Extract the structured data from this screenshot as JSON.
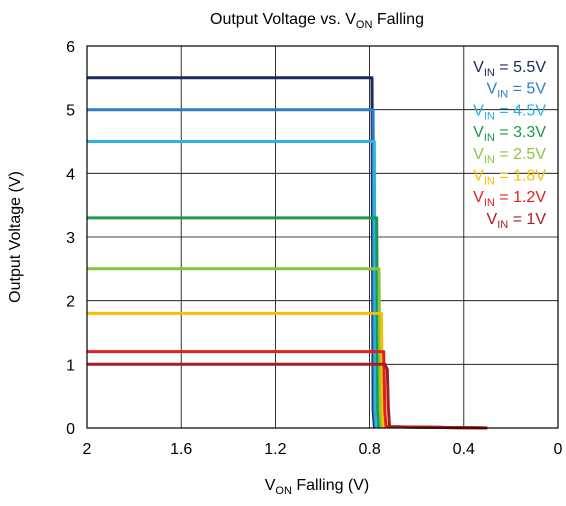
{
  "chart_data": {
    "type": "line",
    "title": {
      "main": "Output Voltage vs. V",
      "sub": "ON",
      "tail": " Falling"
    },
    "xlabel": {
      "main": "V",
      "sub": "ON",
      "tail": " Falling (V)"
    },
    "ylabel": "Output Voltage (V)",
    "xlim": [
      2,
      0
    ],
    "ylim": [
      0,
      6
    ],
    "x_ticks": [
      "2",
      "1.6",
      "1.2",
      "0.8",
      "0.4",
      "0"
    ],
    "y_ticks": [
      "0",
      "1",
      "2",
      "3",
      "4",
      "5",
      "6"
    ],
    "grid": true,
    "legend_position": "top-right",
    "series": [
      {
        "label": {
          "main": "V",
          "sub": "IN",
          "tail": " = 5.5V"
        },
        "color": "#1a2b5e",
        "points": [
          [
            2,
            5.5
          ],
          [
            0.79,
            5.5
          ],
          [
            0.785,
            0.3
          ],
          [
            0.78,
            0.02
          ],
          [
            0.3,
            0.0
          ]
        ]
      },
      {
        "label": {
          "main": "V",
          "sub": "IN",
          "tail": " = 5V"
        },
        "color": "#2e7ec4",
        "points": [
          [
            2,
            5.0
          ],
          [
            0.785,
            5.0
          ],
          [
            0.78,
            0.3
          ],
          [
            0.775,
            0.02
          ],
          [
            0.3,
            0.0
          ]
        ]
      },
      {
        "label": {
          "main": "V",
          "sub": "IN",
          "tail": " = 4.5V"
        },
        "color": "#2ab1e6",
        "points": [
          [
            2,
            4.5
          ],
          [
            0.78,
            4.5
          ],
          [
            0.775,
            0.3
          ],
          [
            0.77,
            0.02
          ],
          [
            0.3,
            0.0
          ]
        ]
      },
      {
        "label": {
          "main": "V",
          "sub": "IN",
          "tail": " = 3.3V"
        },
        "color": "#1a9a48",
        "points": [
          [
            2,
            3.3
          ],
          [
            0.77,
            3.3
          ],
          [
            0.765,
            0.3
          ],
          [
            0.76,
            0.02
          ],
          [
            0.3,
            0.0
          ]
        ]
      },
      {
        "label": {
          "main": "V",
          "sub": "IN",
          "tail": " = 2.5V"
        },
        "color": "#8cc43e",
        "points": [
          [
            2,
            2.5
          ],
          [
            0.76,
            2.5
          ],
          [
            0.755,
            0.3
          ],
          [
            0.75,
            0.02
          ],
          [
            0.3,
            0.0
          ]
        ]
      },
      {
        "label": {
          "main": "V",
          "sub": "IN",
          "tail": " = 1.8V"
        },
        "color": "#f5c000",
        "points": [
          [
            2,
            1.8
          ],
          [
            0.75,
            1.8
          ],
          [
            0.745,
            0.3
          ],
          [
            0.74,
            0.02
          ],
          [
            0.3,
            0.0
          ]
        ]
      },
      {
        "label": {
          "main": "V",
          "sub": "IN",
          "tail": " = 1.2V"
        },
        "color": "#e0201b",
        "points": [
          [
            2,
            1.2
          ],
          [
            0.74,
            1.2
          ],
          [
            0.735,
            0.25
          ],
          [
            0.73,
            0.02
          ],
          [
            0.3,
            0.0
          ]
        ]
      },
      {
        "label": {
          "main": "V",
          "sub": "IN",
          "tail": " = 1V"
        },
        "color": "#a51d24",
        "points": [
          [
            2,
            1.0
          ],
          [
            0.735,
            1.0
          ],
          [
            0.725,
            0.92
          ],
          [
            0.72,
            0.3
          ],
          [
            0.715,
            0.02
          ],
          [
            0.3,
            0.0
          ]
        ]
      }
    ]
  }
}
